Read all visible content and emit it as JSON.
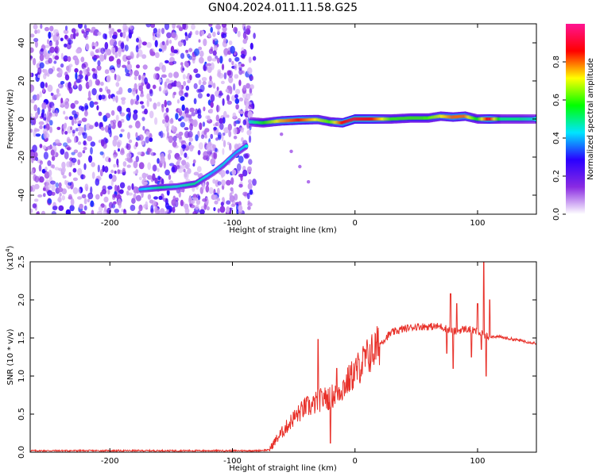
{
  "title": "GN04.2024.011.11.58.G25",
  "chart_data": [
    {
      "type": "heatmap",
      "xlabel": "Height of straight line (km)",
      "ylabel": "Frequency (Hz)",
      "xlim": [
        -265,
        148
      ],
      "ylim": [
        -50,
        50
      ],
      "xticks": [
        -200,
        -100,
        0,
        100
      ],
      "yticks": [
        -40,
        -20,
        0,
        20,
        40
      ],
      "colorbar": {
        "label": "Normalized spectral amplitude",
        "range": [
          0,
          1
        ],
        "ticks": [
          "0.0",
          "0.2",
          "0.4",
          "0.6",
          "0.8"
        ],
        "colormap": [
          "#ffffff",
          "#8a2be2",
          "#2a00ff",
          "#00e5ff",
          "#00ff00",
          "#ffff00",
          "#ff0000",
          "#ff1493"
        ]
      },
      "noise_region_x": [
        -265,
        -82
      ],
      "main_trace": {
        "points": [
          {
            "x": -85,
            "y": -1.5,
            "a": 0.45
          },
          {
            "x": -75,
            "y": -2.0,
            "a": 0.55
          },
          {
            "x": -60,
            "y": -1.0,
            "a": 0.75
          },
          {
            "x": -45,
            "y": -0.5,
            "a": 0.85
          },
          {
            "x": -30,
            "y": -0.3,
            "a": 0.7
          },
          {
            "x": -20,
            "y": -1.5,
            "a": 0.6
          },
          {
            "x": -10,
            "y": -2.0,
            "a": 0.85
          },
          {
            "x": 0,
            "y": 0.0,
            "a": 0.9
          },
          {
            "x": 15,
            "y": 0.0,
            "a": 0.85
          },
          {
            "x": 30,
            "y": 0.0,
            "a": 0.6
          },
          {
            "x": 45,
            "y": 0.5,
            "a": 0.6
          },
          {
            "x": 60,
            "y": 0.5,
            "a": 0.6
          },
          {
            "x": 70,
            "y": 1.5,
            "a": 0.7
          },
          {
            "x": 80,
            "y": 1.0,
            "a": 0.8
          },
          {
            "x": 90,
            "y": 1.5,
            "a": 0.8
          },
          {
            "x": 100,
            "y": 0.0,
            "a": 0.55
          },
          {
            "x": 110,
            "y": 0.0,
            "a": 0.9
          },
          {
            "x": 120,
            "y": 0.0,
            "a": 0.5
          },
          {
            "x": 135,
            "y": 0.0,
            "a": 0.5
          },
          {
            "x": 148,
            "y": 0.0,
            "a": 0.45
          }
        ]
      },
      "lower_trace": {
        "points": [
          {
            "x": -175,
            "y": -37,
            "a": 0.4
          },
          {
            "x": -158,
            "y": -36,
            "a": 0.5
          },
          {
            "x": -145,
            "y": -35.5,
            "a": 0.45
          },
          {
            "x": -130,
            "y": -34,
            "a": 0.5
          },
          {
            "x": -115,
            "y": -28,
            "a": 0.4
          },
          {
            "x": -107,
            "y": -24,
            "a": 0.45
          },
          {
            "x": -97,
            "y": -18,
            "a": 0.4
          },
          {
            "x": -88,
            "y": -14,
            "a": 0.45
          }
        ]
      },
      "faint_streak": {
        "points": [
          {
            "x": -60,
            "y": -8
          },
          {
            "x": -52,
            "y": -17
          },
          {
            "x": -45,
            "y": -25
          },
          {
            "x": -38,
            "y": -33
          }
        ]
      }
    },
    {
      "type": "line",
      "xlabel": "Height of straight line (km)",
      "ylabel": "SNR (10 * v/v)",
      "y_multiplier": "(x10",
      "y_multiplier_exp": "4",
      "y_multiplier_close": ")",
      "xlim": [
        -265,
        148
      ],
      "ylim": [
        0,
        2.5
      ],
      "xticks": [
        -200,
        -100,
        0,
        100
      ],
      "yticks": [
        0.0,
        0.5,
        1.0,
        1.5,
        2.0,
        2.5
      ],
      "color": "#e8312a",
      "series": [
        {
          "x": [
            -265,
            -200,
            -150,
            -100,
            -80,
            -70,
            -65,
            -60,
            -55,
            -50,
            -45,
            -40,
            -35,
            -30,
            -25,
            -20,
            -15,
            -10,
            -5,
            0,
            5,
            10,
            15,
            20,
            25,
            30,
            40,
            50,
            60,
            70,
            75,
            78,
            80,
            85,
            90,
            95,
            100,
            103,
            105,
            107,
            110,
            115,
            130,
            148
          ],
          "y": [
            0.02,
            0.02,
            0.02,
            0.02,
            0.02,
            0.03,
            0.15,
            0.25,
            0.35,
            0.45,
            0.52,
            0.6,
            0.6,
            0.68,
            0.7,
            0.72,
            0.78,
            0.85,
            0.95,
            1.05,
            1.15,
            1.25,
            1.33,
            1.42,
            1.5,
            1.57,
            1.62,
            1.65,
            1.65,
            1.65,
            1.62,
            1.6,
            1.58,
            1.6,
            1.62,
            1.6,
            1.58,
            1.55,
            1.55,
            1.52,
            1.52,
            1.52,
            1.48,
            1.43
          ]
        }
      ],
      "spikes": [
        {
          "x": -30,
          "y": 1.48
        },
        {
          "x": -25,
          "y": 0.7
        },
        {
          "x": -20,
          "y": 0.12
        },
        {
          "x": -15,
          "y": 1.1
        },
        {
          "x": 75,
          "y": 1.3
        },
        {
          "x": 78,
          "y": 2.08
        },
        {
          "x": 80,
          "y": 1.1
        },
        {
          "x": 83,
          "y": 1.95
        },
        {
          "x": 95,
          "y": 1.25
        },
        {
          "x": 100,
          "y": 1.95
        },
        {
          "x": 103,
          "y": 1.35
        },
        {
          "x": 105,
          "y": 2.5
        },
        {
          "x": 107,
          "y": 1.0
        },
        {
          "x": 110,
          "y": 2.0
        }
      ]
    }
  ]
}
